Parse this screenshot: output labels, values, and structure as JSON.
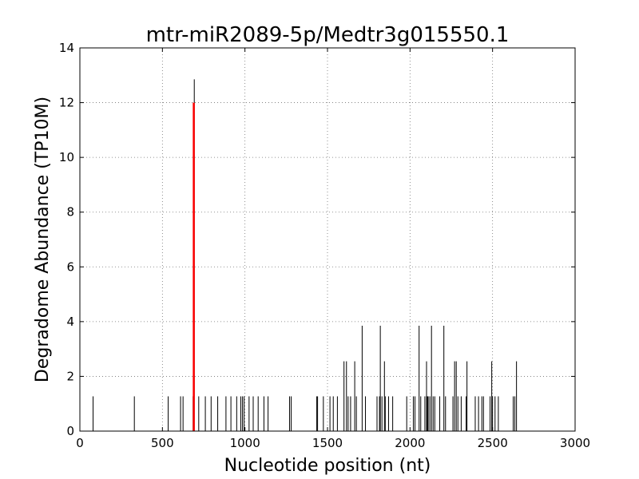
{
  "chart_data": {
    "type": "bar",
    "title": "mtr-miR2089-5p/Medtr3g015550.1",
    "xlabel": "Nucleotide position (nt)",
    "ylabel": "Degradome Abundance (TP10M)",
    "xlim": [
      0,
      3000
    ],
    "ylim": [
      0,
      14
    ],
    "xticks": [
      0,
      500,
      1000,
      1500,
      2000,
      2500,
      3000
    ],
    "yticks": [
      0,
      2,
      4,
      6,
      8,
      10,
      12,
      14
    ],
    "grid": true,
    "colors": {
      "series": "#000000",
      "highlight": "#ff0000"
    },
    "series": [
      {
        "values": [
          [
            80,
            1.27
          ],
          [
            330,
            1.27
          ],
          [
            535,
            1.27
          ],
          [
            610,
            1.27
          ],
          [
            625,
            1.27
          ],
          [
            686,
            1.27
          ],
          [
            693,
            12.85
          ],
          [
            720,
            1.27
          ],
          [
            760,
            1.27
          ],
          [
            795,
            1.27
          ],
          [
            835,
            1.27
          ],
          [
            885,
            1.27
          ],
          [
            915,
            1.27
          ],
          [
            950,
            1.27
          ],
          [
            975,
            1.27
          ],
          [
            985,
            1.27
          ],
          [
            995,
            1.27
          ],
          [
            1025,
            1.27
          ],
          [
            1050,
            1.27
          ],
          [
            1080,
            1.27
          ],
          [
            1115,
            1.27
          ],
          [
            1140,
            1.27
          ],
          [
            1270,
            1.27
          ],
          [
            1280,
            1.27
          ],
          [
            1435,
            1.27
          ],
          [
            1440,
            1.27
          ],
          [
            1475,
            1.27
          ],
          [
            1515,
            1.27
          ],
          [
            1535,
            1.27
          ],
          [
            1560,
            1.27
          ],
          [
            1600,
            2.55
          ],
          [
            1615,
            2.55
          ],
          [
            1625,
            1.27
          ],
          [
            1640,
            1.27
          ],
          [
            1665,
            2.55
          ],
          [
            1675,
            1.27
          ],
          [
            1710,
            3.85
          ],
          [
            1730,
            1.27
          ],
          [
            1800,
            1.27
          ],
          [
            1815,
            1.27
          ],
          [
            1820,
            3.85
          ],
          [
            1830,
            1.27
          ],
          [
            1845,
            2.55
          ],
          [
            1850,
            1.27
          ],
          [
            1870,
            1.27
          ],
          [
            1895,
            1.27
          ],
          [
            1980,
            1.27
          ],
          [
            2020,
            1.27
          ],
          [
            2030,
            1.27
          ],
          [
            2055,
            3.85
          ],
          [
            2065,
            1.27
          ],
          [
            2090,
            1.27
          ],
          [
            2100,
            2.55
          ],
          [
            2105,
            1.27
          ],
          [
            2110,
            1.27
          ],
          [
            2120,
            1.27
          ],
          [
            2130,
            3.85
          ],
          [
            2140,
            1.27
          ],
          [
            2150,
            1.27
          ],
          [
            2180,
            1.27
          ],
          [
            2205,
            3.85
          ],
          [
            2215,
            1.27
          ],
          [
            2260,
            1.27
          ],
          [
            2270,
            2.55
          ],
          [
            2280,
            2.55
          ],
          [
            2290,
            1.27
          ],
          [
            2310,
            1.27
          ],
          [
            2340,
            1.27
          ],
          [
            2345,
            2.55
          ],
          [
            2395,
            1.27
          ],
          [
            2415,
            1.27
          ],
          [
            2435,
            1.27
          ],
          [
            2445,
            1.27
          ],
          [
            2485,
            1.27
          ],
          [
            2495,
            2.55
          ],
          [
            2500,
            1.27
          ],
          [
            2515,
            1.27
          ],
          [
            2535,
            1.27
          ],
          [
            2625,
            1.27
          ],
          [
            2635,
            1.27
          ],
          [
            2645,
            2.55
          ]
        ]
      },
      {
        "values": [
          [
            690,
            12.0
          ]
        ]
      }
    ]
  }
}
